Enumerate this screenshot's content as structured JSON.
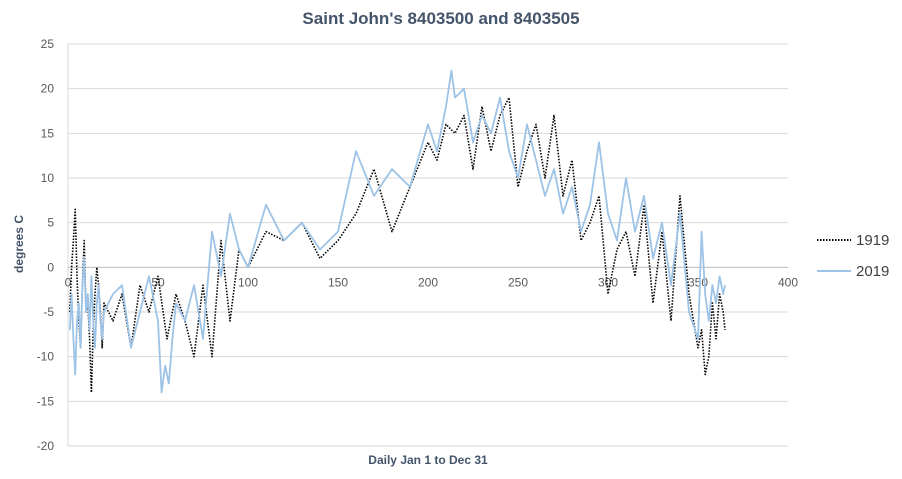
{
  "chart_data": {
    "type": "line",
    "title": "Saint John's 8403500 and 8403505",
    "xlabel": "Daily Jan 1 to Dec 31",
    "ylabel": "degrees C",
    "xlim": [
      0,
      400
    ],
    "ylim": [
      -20,
      25
    ],
    "x_ticks": [
      0,
      50,
      100,
      150,
      200,
      250,
      300,
      350,
      400
    ],
    "y_ticks": [
      25,
      20,
      15,
      10,
      5,
      0,
      -5,
      -10,
      -15,
      -20
    ],
    "grid": true,
    "legend_position": "right",
    "series": [
      {
        "name": "1919",
        "color": "#000000",
        "style": "dotted",
        "x": [
          1,
          2,
          3,
          4,
          5,
          6,
          7,
          8,
          9,
          10,
          11,
          12,
          13,
          14,
          15,
          16,
          17,
          18,
          19,
          20,
          25,
          30,
          35,
          40,
          45,
          50,
          55,
          60,
          65,
          70,
          75,
          80,
          85,
          90,
          95,
          100,
          110,
          120,
          130,
          140,
          150,
          160,
          170,
          180,
          190,
          200,
          205,
          210,
          215,
          220,
          225,
          230,
          235,
          240,
          245,
          250,
          255,
          260,
          265,
          270,
          275,
          280,
          285,
          290,
          295,
          300,
          305,
          310,
          315,
          320,
          325,
          330,
          335,
          340,
          345,
          350,
          352,
          354,
          356,
          358,
          360,
          362,
          364,
          365
        ],
        "values": [
          -5,
          0,
          3,
          6.5,
          -1,
          -6,
          -9,
          -2,
          3,
          -5,
          -4,
          -8,
          -14,
          -7,
          -3,
          0,
          -2,
          -5,
          -9,
          -4,
          -6,
          -3,
          -9,
          -2,
          -5,
          -1,
          -8,
          -3,
          -6,
          -10,
          -2,
          -10,
          3,
          -6,
          2,
          0,
          4,
          3,
          5,
          1,
          3,
          6,
          11,
          4,
          9,
          14,
          12,
          16,
          15,
          17,
          11,
          18,
          13,
          17,
          19,
          9,
          13,
          16,
          10,
          17,
          8,
          12,
          3,
          5,
          8,
          -3,
          2,
          4,
          -1,
          7,
          -4,
          4,
          -6,
          8,
          -3,
          -9,
          -7,
          -12,
          -10,
          -4,
          -8,
          -3,
          -5,
          -7
        ]
      },
      {
        "name": "2019",
        "color": "#9dc3e6",
        "style": "solid",
        "x": [
          1,
          2,
          3,
          4,
          5,
          6,
          7,
          8,
          9,
          10,
          11,
          12,
          13,
          14,
          15,
          16,
          17,
          18,
          19,
          20,
          25,
          30,
          35,
          40,
          45,
          50,
          52,
          54,
          56,
          58,
          60,
          65,
          70,
          75,
          80,
          85,
          90,
          95,
          100,
          110,
          120,
          130,
          140,
          150,
          160,
          170,
          180,
          190,
          200,
          205,
          210,
          213,
          215,
          220,
          225,
          230,
          235,
          240,
          245,
          250,
          255,
          260,
          265,
          270,
          275,
          280,
          285,
          290,
          295,
          300,
          305,
          310,
          315,
          320,
          325,
          330,
          335,
          340,
          345,
          350,
          352,
          354,
          356,
          358,
          360,
          362,
          364,
          365
        ],
        "values": [
          -7,
          -3,
          -8,
          -12,
          -6,
          -4,
          -9,
          -2,
          1,
          -5,
          -3,
          -7,
          -1,
          -6,
          -9,
          -4,
          -2,
          -6,
          -8,
          -5,
          -3,
          -2,
          -9,
          -5,
          -1,
          -6,
          -14,
          -11,
          -13,
          -8,
          -4,
          -6,
          -2,
          -8,
          4,
          -1,
          6,
          2,
          0,
          7,
          3,
          5,
          2,
          4,
          13,
          8,
          11,
          9,
          16,
          13,
          18,
          22,
          19,
          20,
          14,
          17,
          15,
          19,
          13,
          10,
          16,
          12,
          8,
          11,
          6,
          9,
          4,
          7,
          14,
          6,
          3,
          10,
          4,
          8,
          1,
          5,
          -2,
          6,
          -5,
          -8,
          4,
          -3,
          -6,
          -2,
          -4,
          -1,
          -3,
          -2
        ]
      }
    ]
  }
}
